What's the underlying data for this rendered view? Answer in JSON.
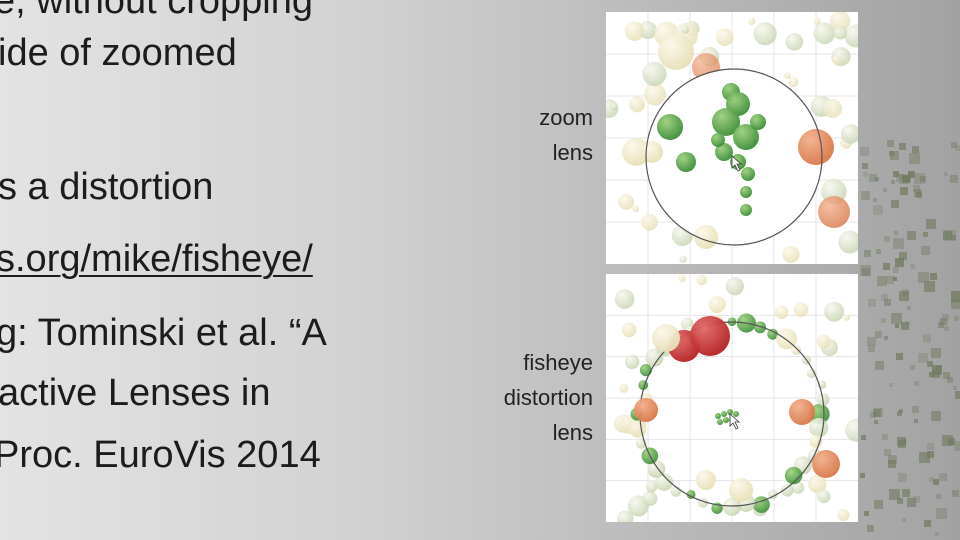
{
  "slide": {
    "lines": [
      "e, without cropping",
      "ide of zoomed",
      "s a distortion",
      "s.org/mike/fisheye/",
      "g: Tominski et al. “A",
      "active Lenses in",
      "Proc. EuroVis 2014"
    ]
  },
  "figure": {
    "zoom_label": [
      "zoom",
      "lens"
    ],
    "fisheye_label": [
      "fisheye",
      "distortion",
      "lens"
    ]
  },
  "colors": {
    "light_bubble": "#e8e0b8",
    "green_bubble": "#3f8f3a",
    "red_bubble": "#b52222",
    "orange_bubble": "#d9784a",
    "lens_outline": "#555555"
  }
}
